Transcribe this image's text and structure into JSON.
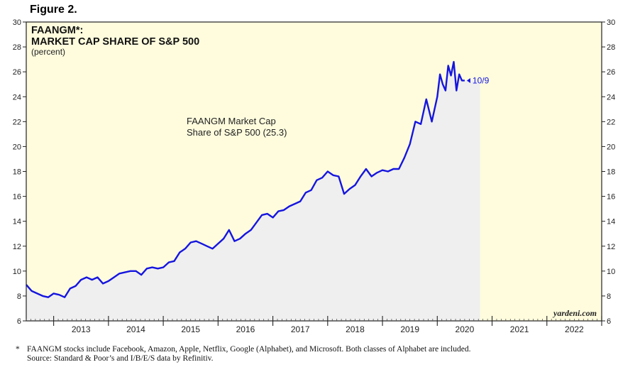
{
  "figure_label": "Figure 2.",
  "footnote": {
    "line1_marker": "*",
    "line1": "FAANGM stocks include Facebook, Amazon, Apple, Netflix, Google (Alphabet), and Microsoft. Both classes of Alphabet are included.",
    "line2": "Source: Standard & Poor’s and I/B/E/S data by Refinitiv."
  },
  "colors": {
    "plot_bg": "#fefcdd",
    "area_fill": "#efefef",
    "line": "#1515e0",
    "annotation": "#1515e0"
  },
  "chart_data": {
    "type": "line",
    "title": "FAANGM*:",
    "subtitle": "MARKET CAP SHARE OF S&P 500",
    "unit_note": "(percent)",
    "series_label_line1": "FAANGM Market Cap",
    "series_label_line2": "Share of S&P 500 (25.3)",
    "end_annotation": "10/9",
    "watermark": "yardeni.com",
    "xlim": [
      2012.5,
      2023.0
    ],
    "ylim": [
      6,
      30
    ],
    "y_ticks": [
      6,
      8,
      10,
      12,
      14,
      16,
      18,
      20,
      22,
      24,
      26,
      28,
      30
    ],
    "x_year_labels": [
      "2013",
      "2014",
      "2015",
      "2016",
      "2017",
      "2018",
      "2019",
      "2020",
      "2021",
      "2022"
    ],
    "series": [
      {
        "name": "FAANGM Market Cap Share of S&P 500",
        "x": [
          2012.5,
          2012.6,
          2012.7,
          2012.8,
          2012.9,
          2013.0,
          2013.1,
          2013.2,
          2013.3,
          2013.4,
          2013.5,
          2013.6,
          2013.7,
          2013.8,
          2013.9,
          2014.0,
          2014.1,
          2014.2,
          2014.3,
          2014.4,
          2014.5,
          2014.6,
          2014.7,
          2014.8,
          2014.9,
          2015.0,
          2015.1,
          2015.2,
          2015.3,
          2015.4,
          2015.5,
          2015.6,
          2015.7,
          2015.8,
          2015.9,
          2016.0,
          2016.1,
          2016.2,
          2016.3,
          2016.4,
          2016.5,
          2016.6,
          2016.7,
          2016.8,
          2016.9,
          2017.0,
          2017.1,
          2017.2,
          2017.3,
          2017.4,
          2017.5,
          2017.6,
          2017.7,
          2017.8,
          2017.9,
          2018.0,
          2018.1,
          2018.2,
          2018.3,
          2018.4,
          2018.5,
          2018.6,
          2018.7,
          2018.8,
          2018.9,
          2019.0,
          2019.1,
          2019.2,
          2019.3,
          2019.4,
          2019.5,
          2019.6,
          2019.7,
          2019.8,
          2019.9,
          2020.0,
          2020.05,
          2020.1,
          2020.15,
          2020.2,
          2020.25,
          2020.3,
          2020.35,
          2020.4,
          2020.45,
          2020.5,
          2020.55,
          2020.6,
          2020.65,
          2020.7,
          2020.75,
          2020.78
        ],
        "values": [
          8.9,
          8.4,
          8.2,
          8.0,
          7.9,
          8.2,
          8.1,
          7.9,
          8.6,
          8.8,
          9.3,
          9.5,
          9.3,
          9.5,
          9.0,
          9.2,
          9.5,
          9.8,
          9.9,
          10.0,
          10.0,
          9.7,
          10.2,
          10.3,
          10.2,
          10.3,
          10.7,
          10.8,
          11.5,
          11.8,
          12.3,
          12.4,
          12.2,
          12.0,
          11.8,
          12.2,
          12.6,
          13.3,
          12.4,
          12.6,
          13.0,
          13.3,
          13.9,
          14.5,
          14.6,
          14.3,
          14.8,
          14.9,
          15.2,
          15.4,
          15.6,
          16.3,
          16.5,
          17.3,
          17.5,
          18.0,
          17.7,
          17.6,
          16.2,
          16.6,
          16.9,
          17.6,
          18.2,
          17.6,
          17.9,
          18.1,
          18.0,
          18.2,
          18.2,
          19.1,
          20.2,
          22.0,
          21.8,
          23.8,
          22.0,
          24.0,
          25.8,
          25.0,
          24.5,
          26.5,
          25.7,
          26.8,
          24.5,
          25.8,
          25.3,
          25.3,
          null,
          null,
          null,
          null,
          null,
          null
        ]
      }
    ]
  }
}
